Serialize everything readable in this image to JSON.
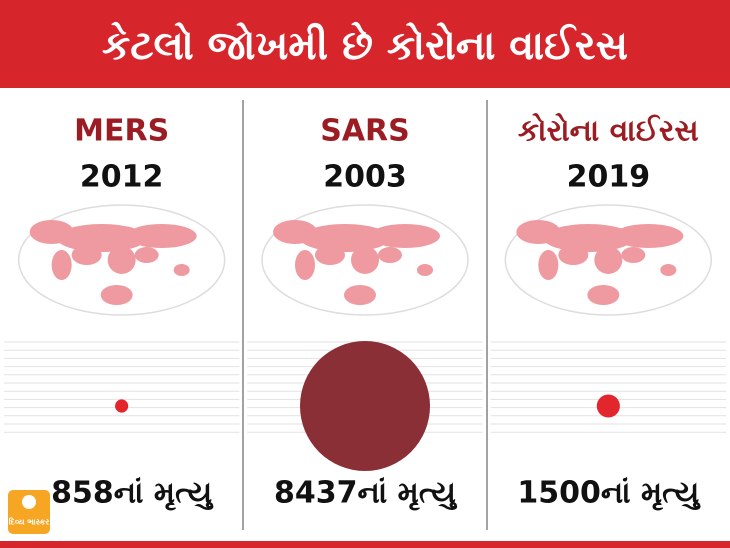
{
  "chart_data": {
    "type": "bubble",
    "title": "કેટલો જોખમી છે કોરોના વાઈરસ",
    "categories": [
      "MERS",
      "SARS",
      "કોરોના વાઈરસ"
    ],
    "years": [
      "2012",
      "2003",
      "2019"
    ],
    "values": [
      858,
      8437,
      1500
    ],
    "value_labels": [
      "858નાં મૃત્યુ",
      "8437નાં મૃત્યુ",
      "1500નાં મૃત્યુ"
    ],
    "colors": [
      "#e3262b",
      "#8a2f36",
      "#e3262b"
    ]
  },
  "logo": "દિવ્ય ભાસ્કર"
}
